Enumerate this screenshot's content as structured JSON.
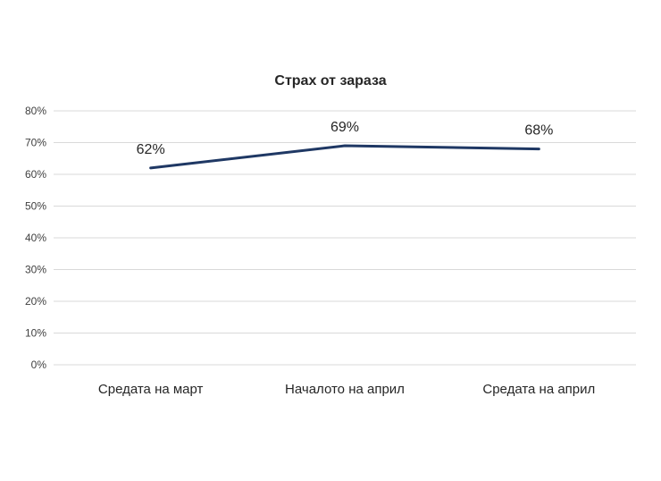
{
  "chart_data": {
    "type": "line",
    "title": "Страх от зараза",
    "categories": [
      "Средата на март",
      "Началото на април",
      "Средата на април"
    ],
    "series": [
      {
        "name": "Страх от зараза",
        "values": [
          62,
          69,
          68
        ]
      }
    ],
    "data_labels": [
      "62%",
      "69%",
      "68%"
    ],
    "y_ticks": [
      "0%",
      "10%",
      "20%",
      "30%",
      "40%",
      "50%",
      "60%",
      "70%",
      "80%"
    ],
    "ylim": [
      0,
      80
    ],
    "grid": "horizontal",
    "legend": "none",
    "colors": {
      "line": "#1f3864",
      "grid": "#d9d9d9",
      "tick_text": "#404040",
      "label_text": "#262626"
    }
  }
}
